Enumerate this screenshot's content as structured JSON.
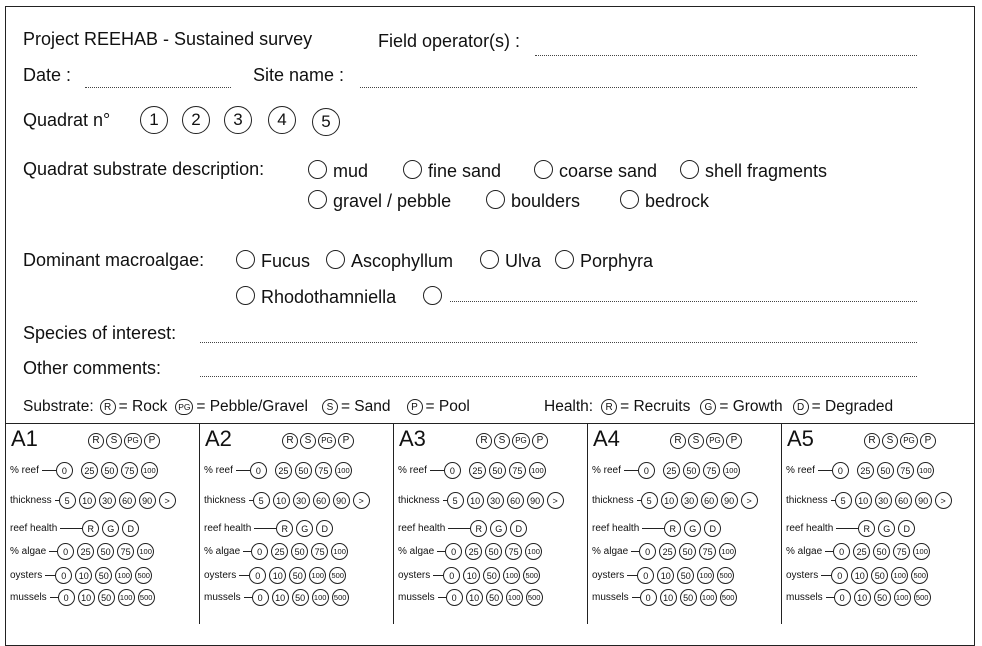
{
  "header": {
    "project": "Project REEHAB - Sustained survey",
    "field_operators_label": "Field operator(s) :",
    "date_label": "Date :",
    "site_name_label": "Site name :"
  },
  "quadrat": {
    "label": "Quadrat n°",
    "numbers": [
      "1",
      "2",
      "3",
      "4",
      "5"
    ]
  },
  "substrate": {
    "label": "Quadrat substrate description:",
    "options": [
      "mud",
      "fine sand",
      "coarse sand",
      "shell fragments",
      "gravel / pebble",
      "boulders",
      "bedrock"
    ]
  },
  "macroalgae": {
    "label": "Dominant macroalgae:",
    "options": [
      "Fucus",
      "Ascophyllum",
      "Ulva",
      "Porphyra",
      "Rhodothamniella"
    ]
  },
  "species_label": "Species of interest:",
  "comments_label": "Other comments:",
  "legend": {
    "substrate_label": "Substrate:",
    "substrate": [
      {
        "code": "R",
        "text": "= Rock"
      },
      {
        "code": "PG",
        "text": "= Pebble/Gravel"
      },
      {
        "code": "S",
        "text": "= Sand"
      },
      {
        "code": "P",
        "text": "= Pool"
      }
    ],
    "health_label": "Health:",
    "health": [
      {
        "code": "R",
        "text": "= Recruits"
      },
      {
        "code": "G",
        "text": "= Growth"
      },
      {
        "code": "D",
        "text": "= Degraded"
      }
    ]
  },
  "panels": {
    "titles": [
      "A1",
      "A2",
      "A3",
      "A4",
      "A5"
    ],
    "types": [
      "R",
      "S",
      "PG",
      "P"
    ],
    "rows": [
      {
        "label": "% reef",
        "values": [
          "0",
          "25",
          "50",
          "75",
          "100"
        ]
      },
      {
        "label": "thickness",
        "values": [
          "5",
          "10",
          "30",
          "60",
          "90",
          ">"
        ]
      },
      {
        "label": "reef health",
        "values": [
          "R",
          "G",
          "D"
        ]
      },
      {
        "label": "% algae",
        "values": [
          "0",
          "25",
          "50",
          "75",
          "100"
        ]
      },
      {
        "label": "oysters",
        "values": [
          "0",
          "10",
          "50",
          "100",
          "500"
        ]
      },
      {
        "label": "mussels",
        "values": [
          "0",
          "10",
          "50",
          "100",
          "500"
        ]
      }
    ]
  }
}
